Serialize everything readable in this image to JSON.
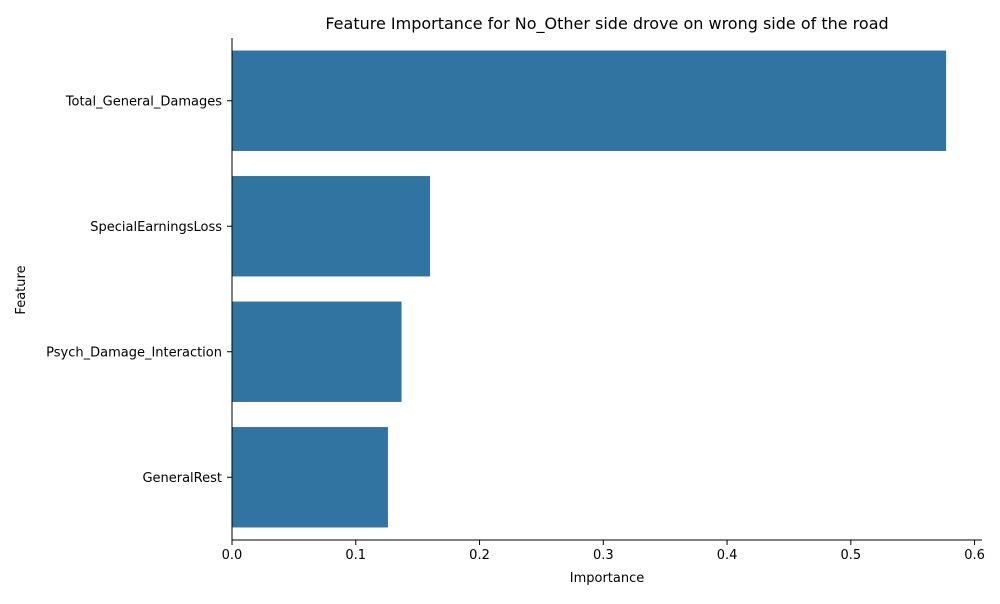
{
  "chart_data": {
    "type": "bar",
    "orientation": "horizontal",
    "title": "Feature Importance for No_Other side drove on wrong side of the road",
    "xlabel": "Importance",
    "ylabel": "Feature",
    "categories": [
      "Total_General_Damages",
      "SpecialEarningsLoss",
      "Psych_Damage_Interaction",
      "GeneralRest"
    ],
    "values": [
      0.577,
      0.16,
      0.137,
      0.126
    ],
    "xlim": [
      0,
      0.606
    ],
    "xticks": [
      "0.0",
      "0.1",
      "0.2",
      "0.3",
      "0.4",
      "0.5",
      "0.6"
    ],
    "xtick_values": [
      0,
      0.1,
      0.2,
      0.3,
      0.4,
      0.5,
      0.6
    ],
    "bar_color": "#3274a1",
    "grid": false,
    "legend": "none"
  }
}
